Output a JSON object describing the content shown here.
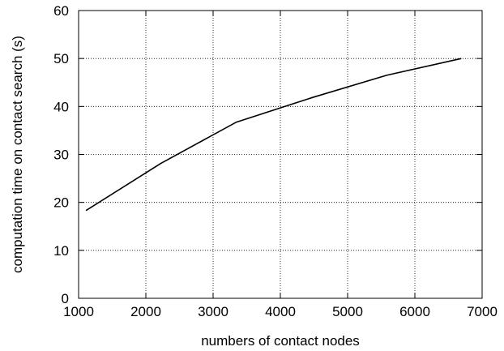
{
  "chart_data": {
    "type": "line",
    "title": "",
    "xlabel": "numbers of contact nodes",
    "ylabel": "computation time on contact search (s)",
    "xlim": [
      1000,
      7000
    ],
    "ylim": [
      0,
      60
    ],
    "xticks": [
      1000,
      2000,
      3000,
      4000,
      5000,
      6000,
      7000
    ],
    "yticks": [
      0,
      10,
      20,
      30,
      40,
      50,
      60
    ],
    "grid": true,
    "legend": "none",
    "series": [
      {
        "color": "#000000",
        "x": [
          1110,
          2220,
          3340,
          4460,
          5580,
          6690
        ],
        "y": [
          18.3,
          28.1,
          36.7,
          41.8,
          46.5,
          50.0
        ]
      }
    ]
  }
}
